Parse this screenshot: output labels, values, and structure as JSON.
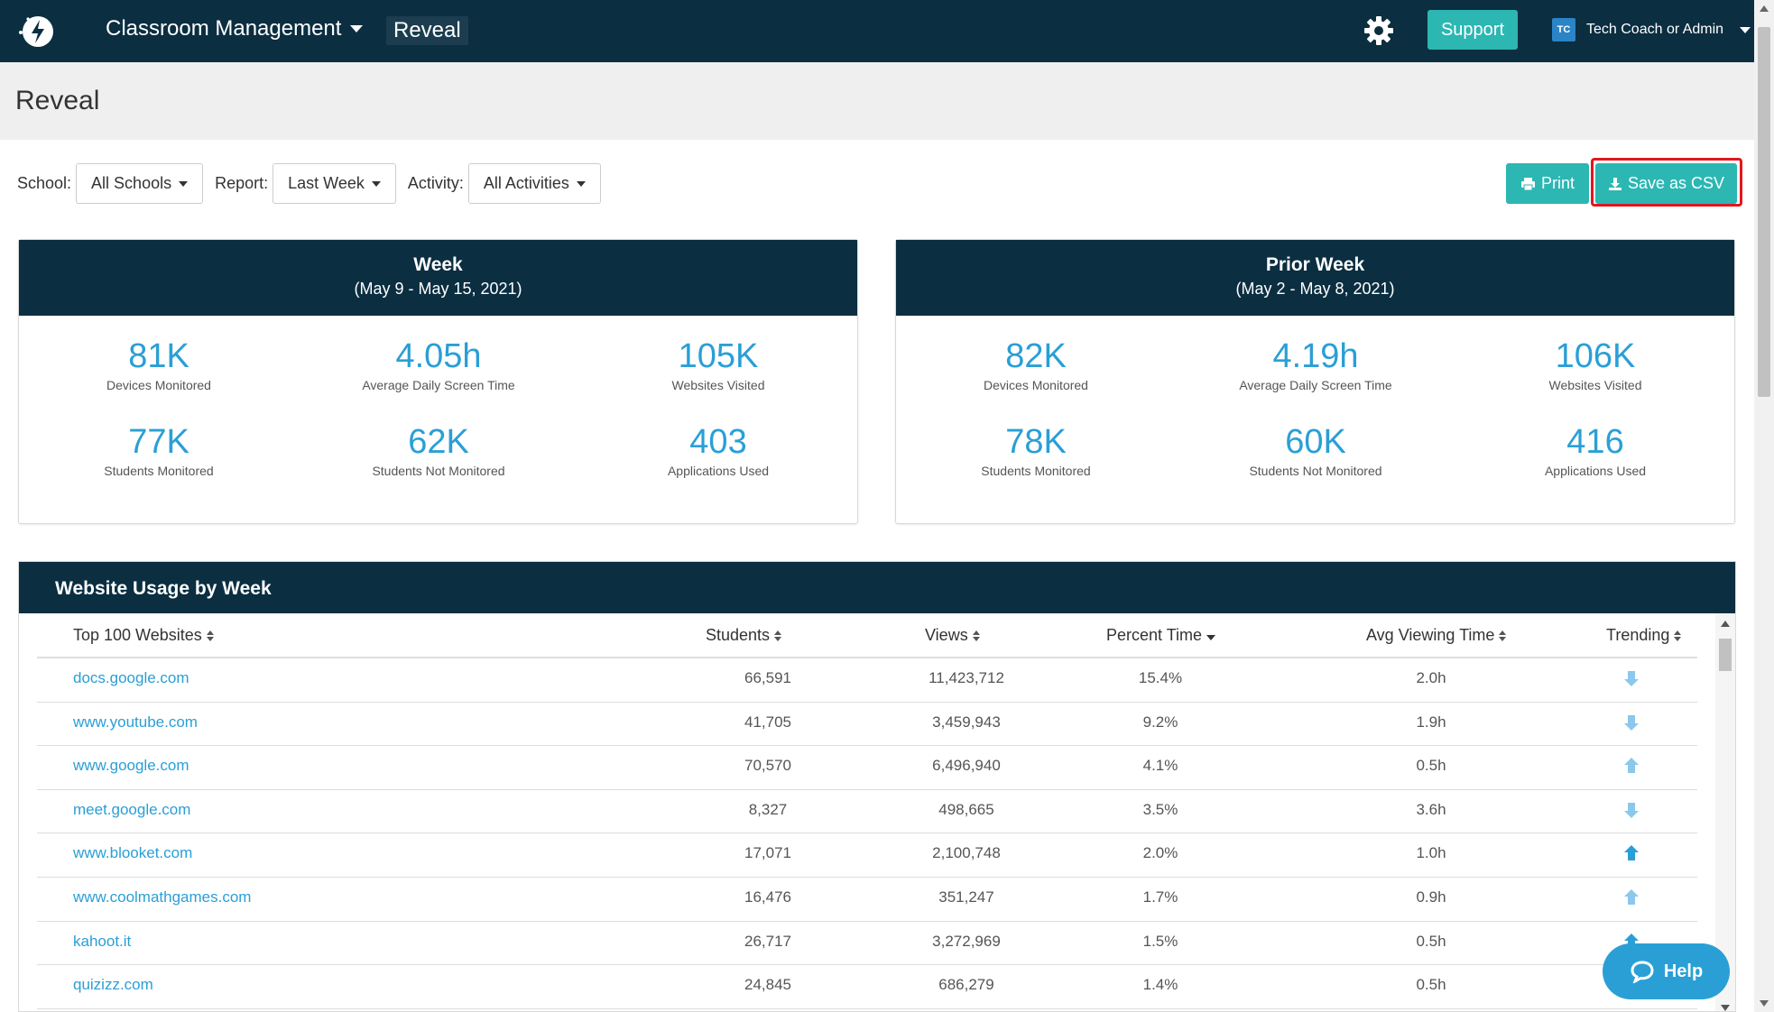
{
  "nav": {
    "menu_label": "Classroom Management",
    "current": "Reveal",
    "support_label": "Support",
    "user_initials": "TC",
    "user_name": "Tech Coach or Admin"
  },
  "page": {
    "title": "Reveal"
  },
  "filters": {
    "school_label": "School:",
    "school_value": "All Schools",
    "report_label": "Report:",
    "report_value": "Last Week",
    "activity_label": "Activity:",
    "activity_value": "All Activities"
  },
  "actions": {
    "print_label": "Print",
    "csv_label": "Save as CSV"
  },
  "cards": [
    {
      "title": "Week",
      "range": "(May 9 - May 15, 2021)",
      "stats": [
        {
          "value": "81K",
          "label": "Devices Monitored"
        },
        {
          "value": "4.05h",
          "label": "Average Daily Screen Time"
        },
        {
          "value": "105K",
          "label": "Websites Visited"
        },
        {
          "value": "77K",
          "label": "Students Monitored"
        },
        {
          "value": "62K",
          "label": "Students Not Monitored"
        },
        {
          "value": "403",
          "label": "Applications Used"
        }
      ]
    },
    {
      "title": "Prior Week",
      "range": "(May 2 - May 8, 2021)",
      "stats": [
        {
          "value": "82K",
          "label": "Devices Monitored"
        },
        {
          "value": "4.19h",
          "label": "Average Daily Screen Time"
        },
        {
          "value": "106K",
          "label": "Websites Visited"
        },
        {
          "value": "78K",
          "label": "Students Monitored"
        },
        {
          "value": "60K",
          "label": "Students Not Monitored"
        },
        {
          "value": "416",
          "label": "Applications Used"
        }
      ]
    }
  ],
  "usage": {
    "title": "Website Usage by Week",
    "columns": [
      "Top 100 Websites",
      "Students",
      "Views",
      "Percent Time",
      "Avg Viewing Time",
      "Trending"
    ],
    "rows": [
      {
        "site": "docs.google.com",
        "students": "66,591",
        "views": "11,423,712",
        "percent": "15.4%",
        "avg": "2.0h",
        "trend": "down-light"
      },
      {
        "site": "www.youtube.com",
        "students": "41,705",
        "views": "3,459,943",
        "percent": "9.2%",
        "avg": "1.9h",
        "trend": "down-light"
      },
      {
        "site": "www.google.com",
        "students": "70,570",
        "views": "6,496,940",
        "percent": "4.1%",
        "avg": "0.5h",
        "trend": "up-light"
      },
      {
        "site": "meet.google.com",
        "students": "8,327",
        "views": "498,665",
        "percent": "3.5%",
        "avg": "3.6h",
        "trend": "down-light"
      },
      {
        "site": "www.blooket.com",
        "students": "17,071",
        "views": "2,100,748",
        "percent": "2.0%",
        "avg": "1.0h",
        "trend": "up-dark"
      },
      {
        "site": "www.coolmathgames.com",
        "students": "16,476",
        "views": "351,247",
        "percent": "1.7%",
        "avg": "0.9h",
        "trend": "up-light"
      },
      {
        "site": "kahoot.it",
        "students": "26,717",
        "views": "3,272,969",
        "percent": "1.5%",
        "avg": "0.5h",
        "trend": "up-dark"
      },
      {
        "site": "quizizz.com",
        "students": "24,845",
        "views": "686,279",
        "percent": "1.4%",
        "avg": "0.5h",
        "trend": "up-light"
      }
    ]
  },
  "help": {
    "label": "Help"
  },
  "colors": {
    "nav": "#0b2e41",
    "accent": "#2cb7b3",
    "link": "#2a9fd6",
    "highlight": "#e0181f"
  }
}
